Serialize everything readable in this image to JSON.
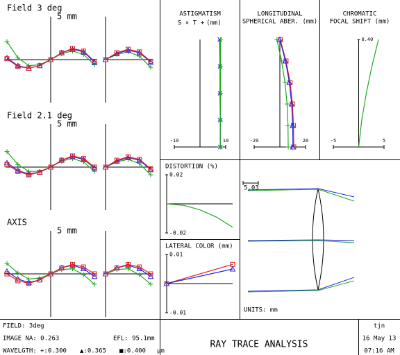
{
  "chart_data": [
    {
      "type": "ray-fan",
      "title": "Field 3 deg",
      "scale_label": "5 mm",
      "ylim": [
        -5,
        5
      ],
      "tangential": {
        "xlim": [
          -1,
          1
        ],
        "x": [
          -1,
          -0.75,
          -0.5,
          -0.25,
          0,
          0.25,
          0.5,
          0.75,
          1
        ],
        "series": [
          {
            "color": "#1fa81f",
            "marker": "plus",
            "values": [
              2.1,
              0.2,
              -0.7,
              -0.6,
              0,
              0.7,
              1.0,
              0.6,
              -0.6
            ]
          },
          {
            "color": "#2424e0",
            "marker": "triangle",
            "values": [
              0.2,
              -0.7,
              -1.0,
              -0.7,
              0,
              0.8,
              1.2,
              0.9,
              -0.3
            ]
          },
          {
            "color": "#e01e1e",
            "marker": "square",
            "values": [
              0.1,
              -0.8,
              -1.0,
              -0.7,
              0,
              0.8,
              1.3,
              1.0,
              -0.2
            ]
          }
        ]
      },
      "sagittal": {
        "xlim": [
          0,
          1
        ],
        "x": [
          0,
          0.25,
          0.5,
          0.75,
          1
        ],
        "series": [
          {
            "color": "#1fa81f",
            "marker": "plus",
            "values": [
              0,
              0.6,
              0.9,
              0.4,
              -0.9
            ]
          },
          {
            "color": "#2424e0",
            "marker": "triangle",
            "values": [
              0,
              0.7,
              1.1,
              0.8,
              -0.3
            ]
          },
          {
            "color": "#e01e1e",
            "marker": "square",
            "values": [
              0,
              0.8,
              1.2,
              0.9,
              -0.2
            ]
          }
        ]
      }
    },
    {
      "type": "ray-fan",
      "title": "Field 2.1 deg",
      "scale_label": "5 mm",
      "ylim": [
        -5,
        5
      ],
      "tangential": {
        "xlim": [
          -1,
          1
        ],
        "x": [
          -1,
          -0.75,
          -0.5,
          -0.25,
          0,
          0.25,
          0.5,
          0.75,
          1
        ],
        "series": [
          {
            "color": "#1fa81f",
            "marker": "plus",
            "values": [
              1.8,
              0.3,
              -0.5,
              -0.5,
              0,
              0.7,
              1.0,
              0.6,
              -0.5
            ]
          },
          {
            "color": "#2424e0",
            "marker": "triangle",
            "values": [
              0.5,
              -0.4,
              -0.8,
              -0.6,
              0,
              0.8,
              1.2,
              0.9,
              -0.1
            ]
          },
          {
            "color": "#e01e1e",
            "marker": "square",
            "values": [
              0.3,
              -0.5,
              -0.9,
              -0.6,
              0,
              0.8,
              1.3,
              1.0,
              0.0
            ]
          }
        ]
      },
      "sagittal": {
        "xlim": [
          0,
          1
        ],
        "x": [
          0,
          0.25,
          0.5,
          0.75,
          1
        ],
        "series": [
          {
            "color": "#1fa81f",
            "marker": "plus",
            "values": [
              0,
              0.6,
              0.9,
              0.4,
              -0.9
            ]
          },
          {
            "color": "#2424e0",
            "marker": "triangle",
            "values": [
              0,
              0.7,
              1.1,
              0.8,
              -0.3
            ]
          },
          {
            "color": "#e01e1e",
            "marker": "square",
            "values": [
              0,
              0.8,
              1.2,
              0.9,
              -0.2
            ]
          }
        ]
      }
    },
    {
      "type": "ray-fan",
      "title": "AXIS",
      "scale_label": "5 mm",
      "ylim": [
        -5,
        5
      ],
      "tangential": {
        "xlim": [
          -1,
          1
        ],
        "x": [
          -1,
          -0.75,
          -0.5,
          -0.25,
          0,
          0.25,
          0.5,
          0.75,
          1
        ],
        "series": [
          {
            "color": "#1fa81f",
            "marker": "plus",
            "values": [
              1.2,
              0.1,
              -0.6,
              -0.5,
              0,
              0.5,
              0.6,
              -0.1,
              -1.2
            ]
          },
          {
            "color": "#2424e0",
            "marker": "triangle",
            "values": [
              0.3,
              -0.6,
              -1.0,
              -0.7,
              0,
              0.7,
              1.0,
              0.6,
              -0.3
            ]
          },
          {
            "color": "#e01e1e",
            "marker": "square",
            "values": [
              0.0,
              -0.8,
              -1.1,
              -0.7,
              0,
              0.7,
              1.1,
              0.8,
              0.0
            ]
          }
        ]
      },
      "sagittal": {
        "xlim": [
          0,
          1
        ],
        "x": [
          0,
          0.25,
          0.5,
          0.75,
          1
        ],
        "series": [
          {
            "color": "#1fa81f",
            "marker": "plus",
            "values": [
              0,
              0.5,
              0.6,
              -0.1,
              -1.2
            ]
          },
          {
            "color": "#2424e0",
            "marker": "triangle",
            "values": [
              0,
              0.7,
              1.0,
              0.6,
              -0.3
            ]
          },
          {
            "color": "#e01e1e",
            "marker": "square",
            "values": [
              0,
              0.7,
              1.1,
              0.8,
              0.0
            ]
          }
        ]
      }
    },
    {
      "type": "focus",
      "title": [
        "ASTIGMATISM"
      ],
      "subtitle": [
        {
          "text": "S ×",
          "color": "#2424e0"
        },
        {
          "text": "T +",
          "color": "#1fa81f"
        },
        {
          "text": "(mm)",
          "color": "#000000"
        }
      ],
      "xlim": [
        0,
        1
      ],
      "x": [
        0,
        0.25,
        0.5,
        0.75,
        1
      ],
      "ylim": [
        -10,
        10
      ],
      "yticks": [
        -10,
        10
      ],
      "series": [
        {
          "color": "#2424e0",
          "marker": "x",
          "values": [
            7.9,
            7.9,
            7.8,
            7.8,
            7.7
          ]
        },
        {
          "color": "#1fa81f",
          "marker": "plus",
          "values": [
            7.9,
            7.9,
            8.0,
            8.0,
            8.0
          ]
        }
      ]
    },
    {
      "type": "focus",
      "title": [
        "LONGITUDINAL",
        "SPHERICAL ABER. (mm)"
      ],
      "xlim": [
        0,
        1
      ],
      "x": [
        0,
        0.2,
        0.4,
        0.6,
        0.8,
        1
      ],
      "ylim": [
        -20,
        20
      ],
      "yticks": [
        -20,
        20
      ],
      "series": [
        {
          "color": "#e01e1e",
          "marker": "square",
          "values": [
            10.8,
            10.6,
            9.8,
            8.0,
            4.8,
            0.3
          ]
        },
        {
          "color": "#2424e0",
          "marker": "triangle",
          "values": [
            10.2,
            10.0,
            9.2,
            7.4,
            4.3,
            0.0
          ]
        },
        {
          "color": "#1fa81f",
          "marker": "plus",
          "values": [
            6.5,
            6.3,
            5.6,
            4.0,
            1.3,
            -2.3
          ]
        }
      ]
    },
    {
      "type": "focus",
      "title": [
        "CHROMATIC",
        "FOCAL SHIFT (mm)"
      ],
      "xlim": [
        0.3,
        0.4
      ],
      "x": [
        0.3,
        0.325,
        0.35,
        0.375,
        0.4
      ],
      "xticks": [
        {
          "value": 0.4,
          "label": "0.40"
        }
      ],
      "ylim": [
        -5,
        5
      ],
      "yticks": [
        -5,
        5
      ],
      "series": [
        {
          "color": "#1fa81f",
          "values": [
            0,
            0.6,
            1.5,
            2.6,
            3.9
          ]
        }
      ]
    },
    {
      "type": "line",
      "title": "DISTORTION (%)",
      "xlim": [
        0,
        1
      ],
      "x": [
        0,
        0.25,
        0.5,
        0.75,
        1
      ],
      "ylim": [
        -0.02,
        0.02
      ],
      "yticks": [
        0.02,
        -0.02
      ],
      "series": [
        {
          "color": "#1fa81f",
          "values": [
            0,
            -0.001,
            -0.004,
            -0.009,
            -0.016
          ]
        }
      ]
    },
    {
      "type": "line",
      "title": "LATERAL COLOR (mm)",
      "xlim": [
        0,
        1
      ],
      "x": [
        0,
        1
      ],
      "ylim": [
        -0.01,
        0.01
      ],
      "yticks": [
        0.01,
        -0.01
      ],
      "series": [
        {
          "color": "#e01e1e",
          "marker": "square",
          "values": [
            0,
            0.0066
          ]
        },
        {
          "color": "#2424e0",
          "marker": "triangle",
          "values": [
            0,
            0.005
          ]
        }
      ]
    }
  ],
  "lens_view": {
    "scale_label": "5.03",
    "units": "UNITS: mm"
  },
  "footer": {
    "field": "FIELD: 3deg",
    "image_na": "IMAGE NA: 0.263",
    "efl": "EFL: 95.1mm",
    "wavelength_label": "WAVELGTH:",
    "wavelengths": [
      {
        "text": "+:0.300",
        "color": "#1fa81f"
      },
      {
        "text": "▲:0.365",
        "color": "#2424e0"
      },
      {
        "text": "■:0.400",
        "color": "#e01e1e"
      }
    ],
    "wavelength_unit": "µm",
    "title": "RAY TRACE ANALYSIS",
    "user": "tjn",
    "date": "16 May 13",
    "time": "07:16 AM"
  }
}
